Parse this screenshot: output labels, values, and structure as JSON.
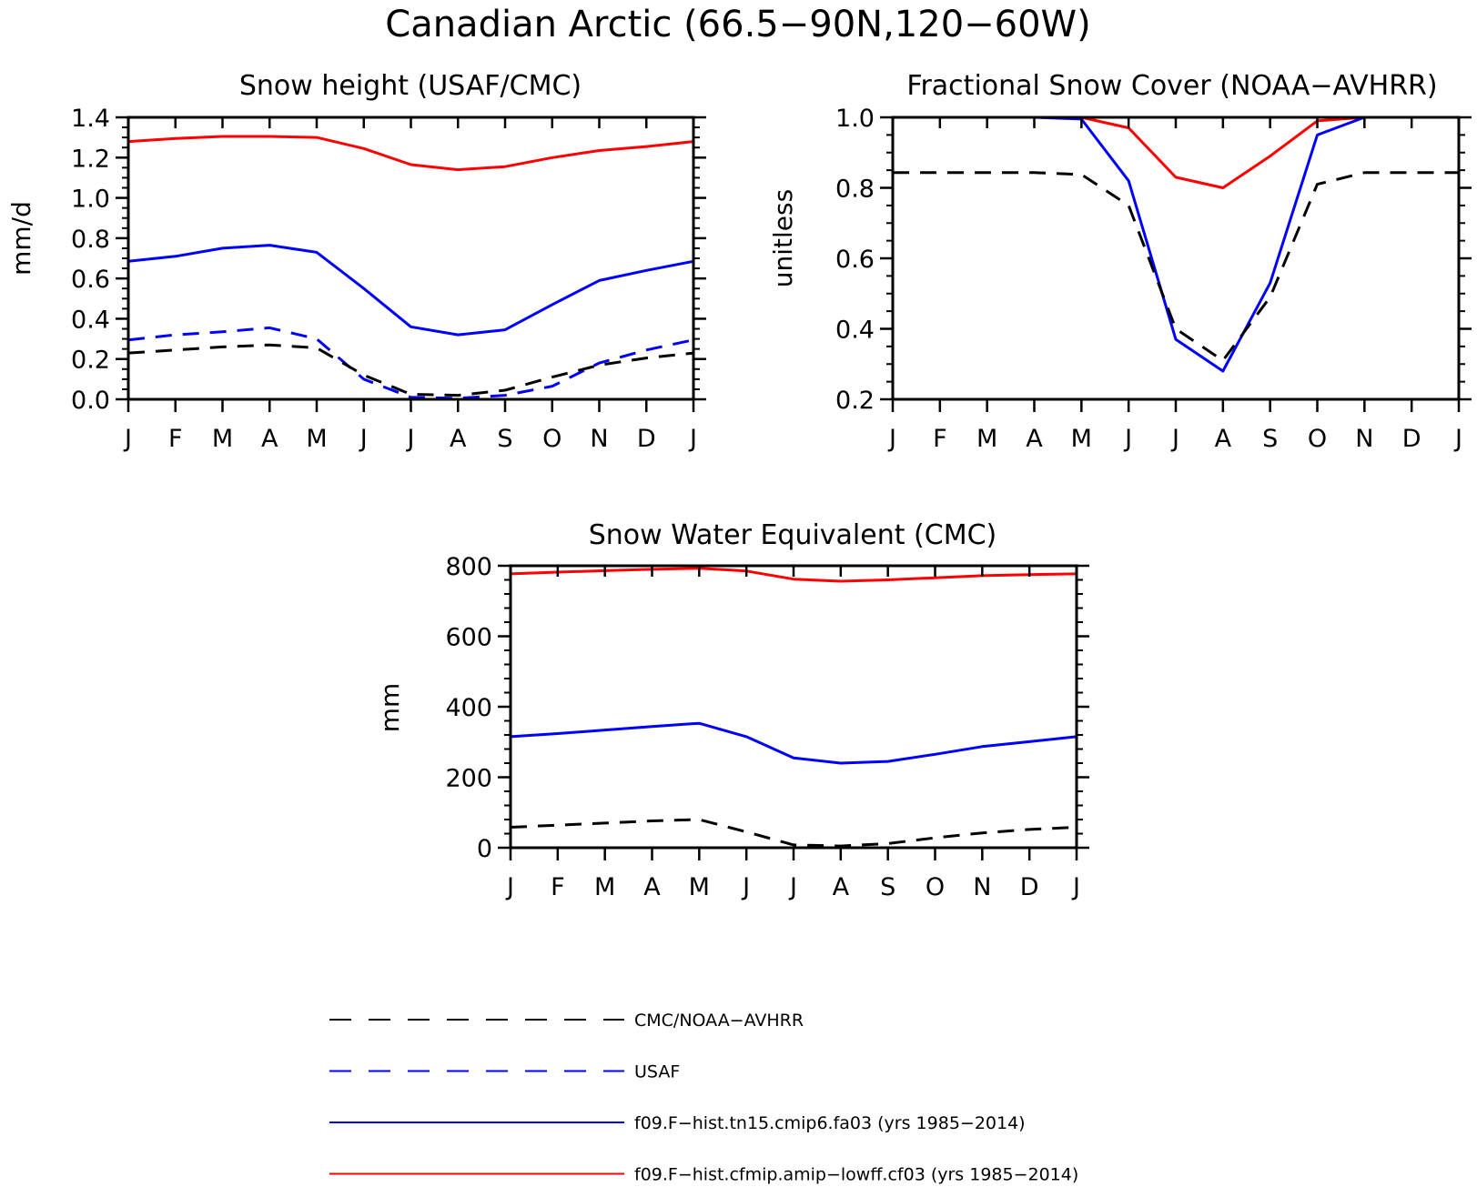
{
  "figure": {
    "title": "Canadian Arctic (66.5−90N,120−60W)"
  },
  "colors": {
    "obs": "#000000",
    "usaf": "#0000ff",
    "tn15": "#0000ff",
    "cf03": "#ff0000"
  },
  "legend": {
    "entries": [
      {
        "key": "obs",
        "label": "CMC/NOAA−AVHRR",
        "color": "#000000",
        "style": "dashed"
      },
      {
        "key": "usaf",
        "label": "USAF",
        "color": "#0000ff",
        "style": "dashed"
      },
      {
        "key": "tn15",
        "label": "f09.F−hist.tn15.cmip6.fa03 (yrs 1985−2014)",
        "color": "#0000ff",
        "style": "solid"
      },
      {
        "key": "cf03",
        "label": "f09.F−hist.cfmip.amip−lowff.cf03 (yrs 1985−2014)",
        "color": "#ff0000",
        "style": "solid"
      }
    ]
  },
  "chart_data": [
    {
      "type": "line",
      "title": "Snow height (USAF/CMC)",
      "xlabel": "",
      "ylabel": "mm/d",
      "x": [
        "J",
        "F",
        "M",
        "A",
        "M",
        "J",
        "J",
        "A",
        "S",
        "O",
        "N",
        "D",
        "J"
      ],
      "ylim": [
        0,
        1.4
      ],
      "yticks": [
        "0.0",
        "0.2",
        "0.4",
        "0.6",
        "0.8",
        "1.0",
        "1.2",
        "1.4"
      ],
      "ytick_values": [
        0,
        0.2,
        0.4,
        0.6,
        0.8,
        1.0,
        1.2,
        1.4
      ],
      "series": [
        {
          "key": "cf03",
          "color": "#ff0000",
          "style": "solid",
          "values": [
            1.28,
            1.295,
            1.305,
            1.305,
            1.3,
            1.245,
            1.165,
            1.14,
            1.155,
            1.2,
            1.235,
            1.255,
            1.28
          ]
        },
        {
          "key": "tn15",
          "color": "#0000ff",
          "style": "solid",
          "values": [
            0.685,
            0.71,
            0.75,
            0.765,
            0.73,
            0.55,
            0.36,
            0.32,
            0.345,
            0.47,
            0.59,
            0.64,
            0.685
          ]
        },
        {
          "key": "usaf",
          "color": "#0000ff",
          "style": "dashed",
          "values": [
            0.295,
            0.32,
            0.335,
            0.355,
            0.3,
            0.1,
            0.01,
            0.005,
            0.02,
            0.065,
            0.18,
            0.245,
            0.295
          ]
        },
        {
          "key": "obs",
          "color": "#000000",
          "style": "dashed",
          "values": [
            0.23,
            0.245,
            0.26,
            0.27,
            0.255,
            0.12,
            0.025,
            0.02,
            0.045,
            0.11,
            0.17,
            0.205,
            0.23
          ]
        }
      ]
    },
    {
      "type": "line",
      "title": "Fractional Snow Cover (NOAA−AVHRR)",
      "xlabel": "",
      "ylabel": "unitless",
      "x": [
        "J",
        "F",
        "M",
        "A",
        "M",
        "J",
        "J",
        "A",
        "S",
        "O",
        "N",
        "D",
        "J"
      ],
      "ylim": [
        0.2,
        1.0
      ],
      "yticks": [
        "0.2",
        "0.4",
        "0.6",
        "0.8",
        "1.0"
      ],
      "ytick_values": [
        0.2,
        0.4,
        0.6,
        0.8,
        1.0
      ],
      "series": [
        {
          "key": "cf03",
          "color": "#ff0000",
          "style": "solid",
          "values": [
            1.0,
            1.0,
            1.0,
            1.0,
            1.0,
            0.97,
            0.83,
            0.8,
            0.89,
            0.99,
            1.0,
            1.0,
            1.0
          ]
        },
        {
          "key": "tn15",
          "color": "#0000ff",
          "style": "solid",
          "values": [
            1.0,
            1.0,
            1.0,
            1.0,
            0.995,
            0.82,
            0.37,
            0.28,
            0.53,
            0.95,
            1.0,
            1.0,
            1.0
          ]
        },
        {
          "key": "obs",
          "color": "#000000",
          "style": "dashed",
          "values": [
            0.843,
            0.843,
            0.843,
            0.843,
            0.838,
            0.75,
            0.4,
            0.31,
            0.49,
            0.81,
            0.843,
            0.843,
            0.843
          ]
        }
      ]
    },
    {
      "type": "line",
      "title": "Snow Water Equivalent (CMC)",
      "xlabel": "",
      "ylabel": "mm",
      "x": [
        "J",
        "F",
        "M",
        "A",
        "M",
        "J",
        "J",
        "A",
        "S",
        "O",
        "N",
        "D",
        "J"
      ],
      "ylim": [
        0,
        800
      ],
      "yticks": [
        "0",
        "200",
        "400",
        "600",
        "800"
      ],
      "ytick_values": [
        0,
        200,
        400,
        600,
        800
      ],
      "series": [
        {
          "key": "cf03",
          "color": "#ff0000",
          "style": "solid",
          "values": [
            777,
            782,
            786,
            790,
            793,
            785,
            762,
            756,
            760,
            766,
            772,
            775,
            777
          ]
        },
        {
          "key": "tn15",
          "color": "#0000ff",
          "style": "solid",
          "values": [
            315,
            324,
            334,
            344,
            353,
            315,
            255,
            240,
            245,
            265,
            287,
            301,
            315
          ]
        },
        {
          "key": "obs",
          "color": "#000000",
          "style": "dashed",
          "values": [
            58,
            64,
            70,
            76,
            80,
            45,
            8,
            5,
            12,
            28,
            42,
            52,
            58
          ]
        }
      ]
    }
  ]
}
